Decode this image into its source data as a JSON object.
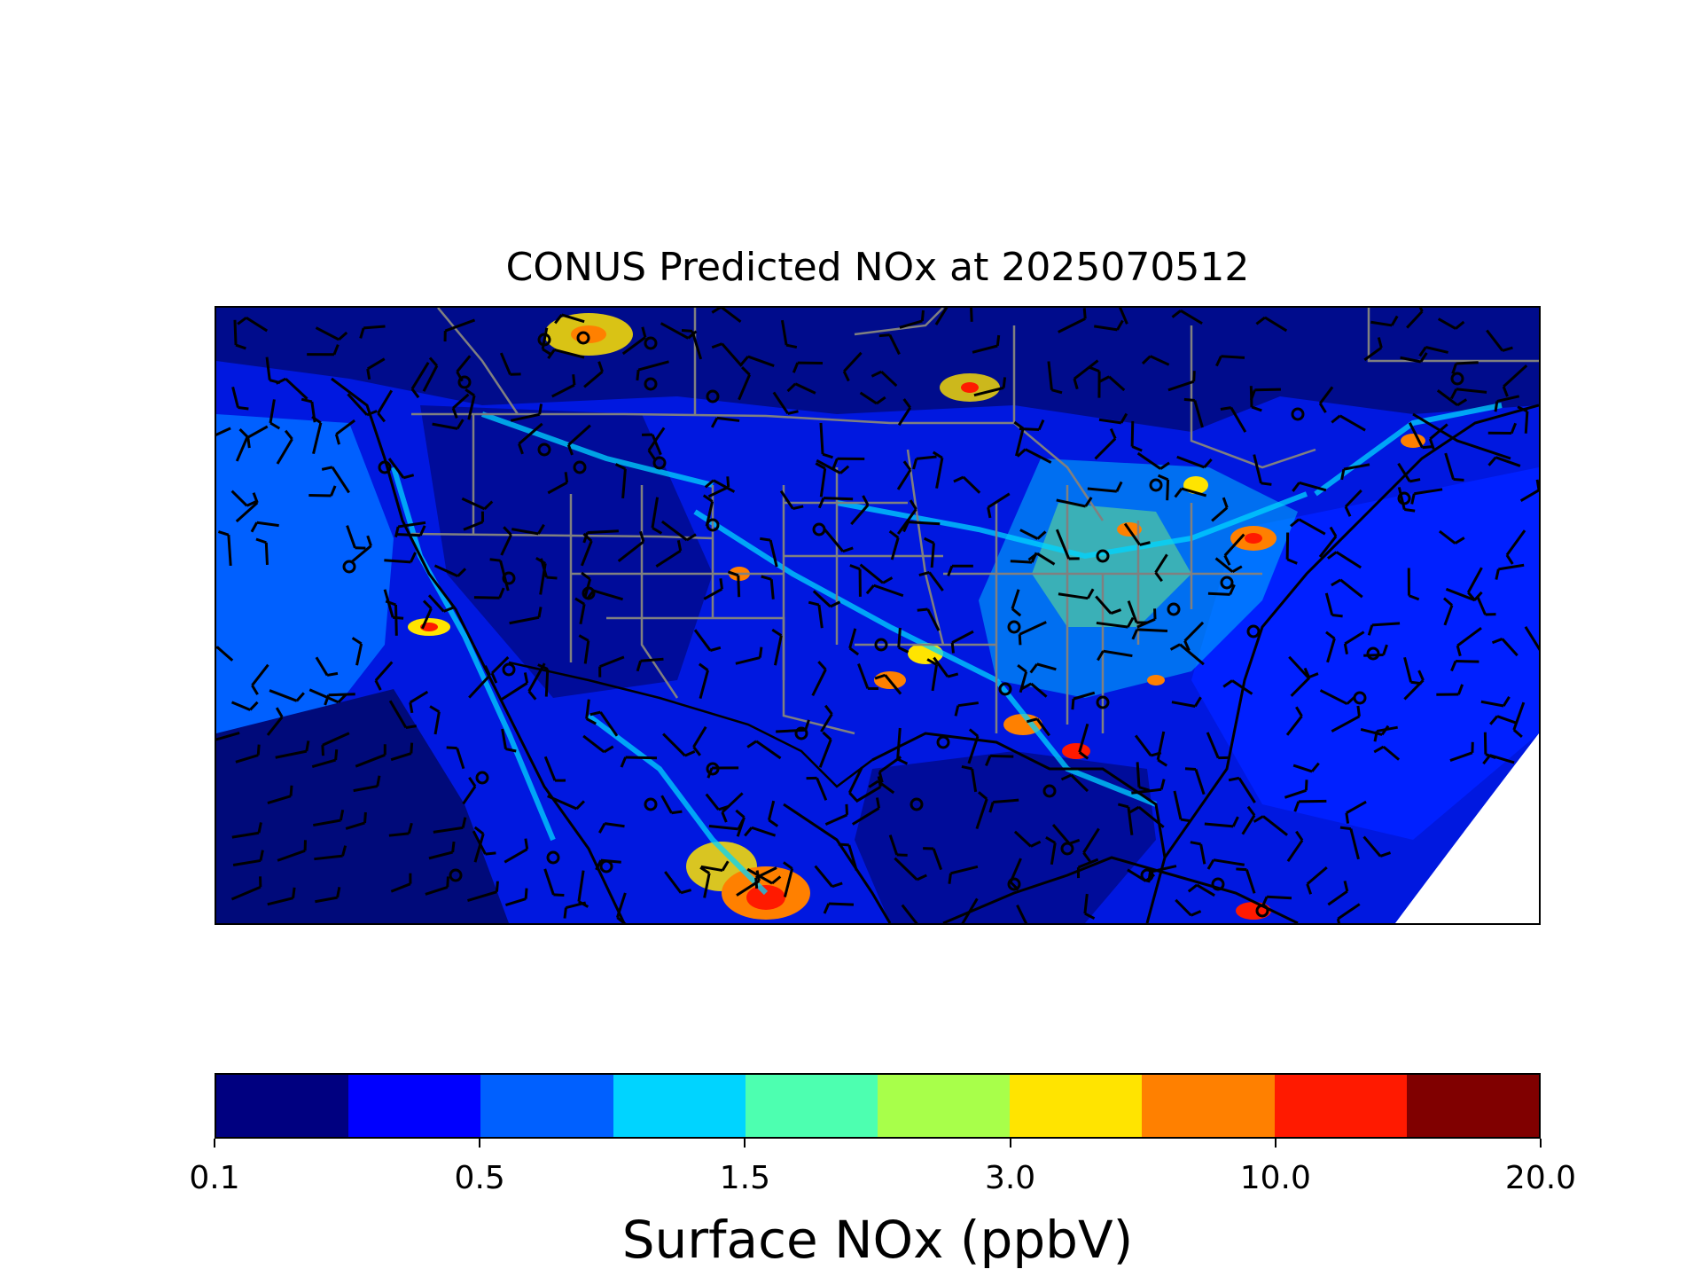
{
  "map": {
    "title": "CONUS Predicted NOx at 2025070512",
    "region": "CONUS",
    "variable": "Surface NOx",
    "overlays": [
      "state-borders",
      "coastlines",
      "wind-barbs",
      "calm-wind-circles"
    ]
  },
  "colorbar": {
    "label": "Surface NOx (ppbV)",
    "colors": [
      "#000080",
      "#0000ff",
      "#0060ff",
      "#00d4ff",
      "#4dffb0",
      "#a8ff4a",
      "#ffe400",
      "#ff8000",
      "#ff1a00",
      "#800000"
    ],
    "ticks": [
      "0.1",
      "0.5",
      "1.5",
      "3.0",
      "10.0",
      "20.0"
    ]
  }
}
